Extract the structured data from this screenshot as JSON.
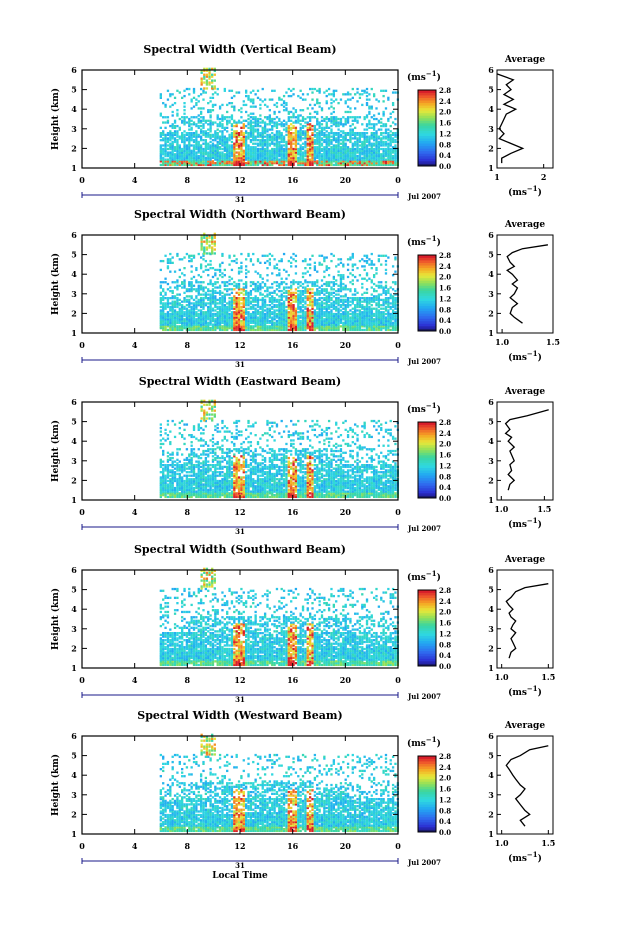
{
  "figure": {
    "xlabel_bottom": "Local Time",
    "date_label": "Jul 2007",
    "day_label": "31",
    "colorbar_unit": "(ms",
    "colorbar_unit_exp": "−1",
    "avg_title": "Average",
    "avg_unit": "(ms",
    "avg_unit_exp": "−1"
  },
  "chart_data": [
    {
      "type": "heatmap",
      "title": "Spectral Width (Vertical Beam)",
      "xlabel": "",
      "ylabel": "Height (km)",
      "x_ticks": [
        "0",
        "4",
        "8",
        "12",
        "16",
        "20",
        "0"
      ],
      "y_ticks": [
        "1",
        "2",
        "3",
        "4",
        "5",
        "6"
      ],
      "xlim": [
        0,
        24
      ],
      "ylim": [
        1,
        6
      ],
      "colorbar": {
        "ticks": [
          "0.0",
          "0.4",
          "0.8",
          "1.2",
          "1.6",
          "2.0",
          "2.4",
          "2.8"
        ],
        "range": [
          0,
          2.8
        ]
      },
      "average": {
        "title": "Average",
        "x_ticks": [
          "1",
          "2"
        ],
        "xlim": [
          1,
          2.2
        ],
        "ylim": [
          1,
          6
        ],
        "x": [
          1.0,
          1.35,
          1.2,
          1.3,
          1.15,
          1.35,
          1.15,
          1.4,
          1.2,
          1.15,
          1.1,
          1.05,
          1.15,
          1.05,
          1.3,
          1.55,
          1.3,
          1.1,
          1.1
        ],
        "y": [
          5.8,
          5.5,
          5.25,
          5.0,
          4.75,
          4.5,
          4.25,
          4.0,
          3.75,
          3.5,
          3.25,
          3.0,
          2.75,
          2.5,
          2.25,
          2.0,
          1.75,
          1.5,
          1.25
        ]
      }
    },
    {
      "type": "heatmap",
      "title": "Spectral Width (Northward Beam)",
      "xlabel": "",
      "ylabel": "Height (km)",
      "x_ticks": [
        "0",
        "4",
        "8",
        "12",
        "16",
        "20",
        "0"
      ],
      "y_ticks": [
        "1",
        "2",
        "3",
        "4",
        "5",
        "6"
      ],
      "xlim": [
        0,
        24
      ],
      "ylim": [
        1,
        6
      ],
      "colorbar": {
        "ticks": [
          "0.0",
          "0.4",
          "0.8",
          "1.2",
          "1.6",
          "2.0",
          "2.4",
          "2.8"
        ],
        "range": [
          0,
          2.8
        ]
      },
      "average": {
        "title": "Average",
        "x_ticks": [
          "1.0",
          "1.5"
        ],
        "xlim": [
          0.95,
          1.5
        ],
        "ylim": [
          1,
          6
        ],
        "x": [
          1.45,
          1.2,
          1.1,
          1.05,
          1.08,
          1.12,
          1.05,
          1.1,
          1.15,
          1.1,
          1.15,
          1.12,
          1.08,
          1.15,
          1.1,
          1.08,
          1.12,
          1.2
        ],
        "y": [
          5.5,
          5.3,
          5.1,
          4.9,
          4.6,
          4.4,
          4.2,
          4.0,
          3.7,
          3.5,
          3.3,
          3.0,
          2.8,
          2.5,
          2.3,
          2.0,
          1.8,
          1.5
        ]
      }
    },
    {
      "type": "heatmap",
      "title": "Spectral Width (Eastward Beam)",
      "xlabel": "",
      "ylabel": "Height (km)",
      "x_ticks": [
        "0",
        "4",
        "8",
        "12",
        "16",
        "20",
        "0"
      ],
      "y_ticks": [
        "1",
        "2",
        "3",
        "4",
        "5",
        "6"
      ],
      "xlim": [
        0,
        24
      ],
      "ylim": [
        1,
        6
      ],
      "colorbar": {
        "ticks": [
          "0.0",
          "0.4",
          "0.8",
          "1.2",
          "1.6",
          "2.0",
          "2.4",
          "2.8"
        ],
        "range": [
          0,
          2.8
        ]
      },
      "average": {
        "title": "Average",
        "x_ticks": [
          "1.0",
          "1.5"
        ],
        "xlim": [
          0.95,
          1.6
        ],
        "ylim": [
          1,
          6
        ],
        "x": [
          1.55,
          1.3,
          1.1,
          1.05,
          1.1,
          1.05,
          1.12,
          1.08,
          1.15,
          1.1,
          1.12,
          1.15,
          1.1,
          1.12,
          1.08,
          1.15,
          1.1,
          1.08
        ],
        "y": [
          5.6,
          5.3,
          5.1,
          4.9,
          4.6,
          4.4,
          4.2,
          4.0,
          3.7,
          3.5,
          3.3,
          3.0,
          2.8,
          2.5,
          2.3,
          2.0,
          1.8,
          1.5
        ]
      }
    },
    {
      "type": "heatmap",
      "title": "Spectral Width (Southward Beam)",
      "xlabel": "",
      "ylabel": "Height (km)",
      "x_ticks": [
        "0",
        "4",
        "8",
        "12",
        "16",
        "20",
        "0"
      ],
      "y_ticks": [
        "1",
        "2",
        "3",
        "4",
        "5",
        "6"
      ],
      "xlim": [
        0,
        24
      ],
      "ylim": [
        1,
        6
      ],
      "colorbar": {
        "ticks": [
          "0.0",
          "0.4",
          "0.8",
          "1.2",
          "1.6",
          "2.0",
          "2.4",
          "2.8"
        ],
        "range": [
          0,
          2.8
        ]
      },
      "average": {
        "title": "Average",
        "x_ticks": [
          "1.0",
          "1.5"
        ],
        "xlim": [
          0.95,
          1.55
        ],
        "ylim": [
          1,
          6
        ],
        "x": [
          1.5,
          1.25,
          1.15,
          1.1,
          1.05,
          1.08,
          1.12,
          1.08,
          1.1,
          1.15,
          1.12,
          1.1,
          1.15,
          1.1,
          1.12,
          1.15,
          1.1,
          1.08
        ],
        "y": [
          5.3,
          5.1,
          4.9,
          4.6,
          4.4,
          4.2,
          4.0,
          3.8,
          3.6,
          3.4,
          3.2,
          3.0,
          2.8,
          2.5,
          2.3,
          2.0,
          1.8,
          1.5
        ]
      }
    },
    {
      "type": "heatmap",
      "title": "Spectral Width (Westward Beam)",
      "xlabel": "Local Time",
      "ylabel": "Height (km)",
      "x_ticks": [
        "0",
        "4",
        "8",
        "12",
        "16",
        "20",
        "0"
      ],
      "y_ticks": [
        "1",
        "2",
        "3",
        "4",
        "5",
        "6"
      ],
      "xlim": [
        0,
        24
      ],
      "ylim": [
        1,
        6
      ],
      "colorbar": {
        "ticks": [
          "0.0",
          "0.4",
          "0.8",
          "1.2",
          "1.6",
          "2.0",
          "2.4",
          "2.8"
        ],
        "range": [
          0,
          2.8
        ]
      },
      "average": {
        "title": "Average",
        "x_ticks": [
          "1.0",
          "1.5"
        ],
        "xlim": [
          0.95,
          1.55
        ],
        "ylim": [
          1,
          6
        ],
        "x": [
          1.5,
          1.3,
          1.2,
          1.1,
          1.05,
          1.08,
          1.12,
          1.15,
          1.2,
          1.25,
          1.2,
          1.15,
          1.2,
          1.25,
          1.3,
          1.2,
          1.25
        ],
        "y": [
          5.5,
          5.3,
          5.0,
          4.8,
          4.5,
          4.3,
          4.0,
          3.8,
          3.5,
          3.3,
          3.0,
          2.8,
          2.5,
          2.2,
          2.0,
          1.7,
          1.4
        ]
      }
    }
  ]
}
